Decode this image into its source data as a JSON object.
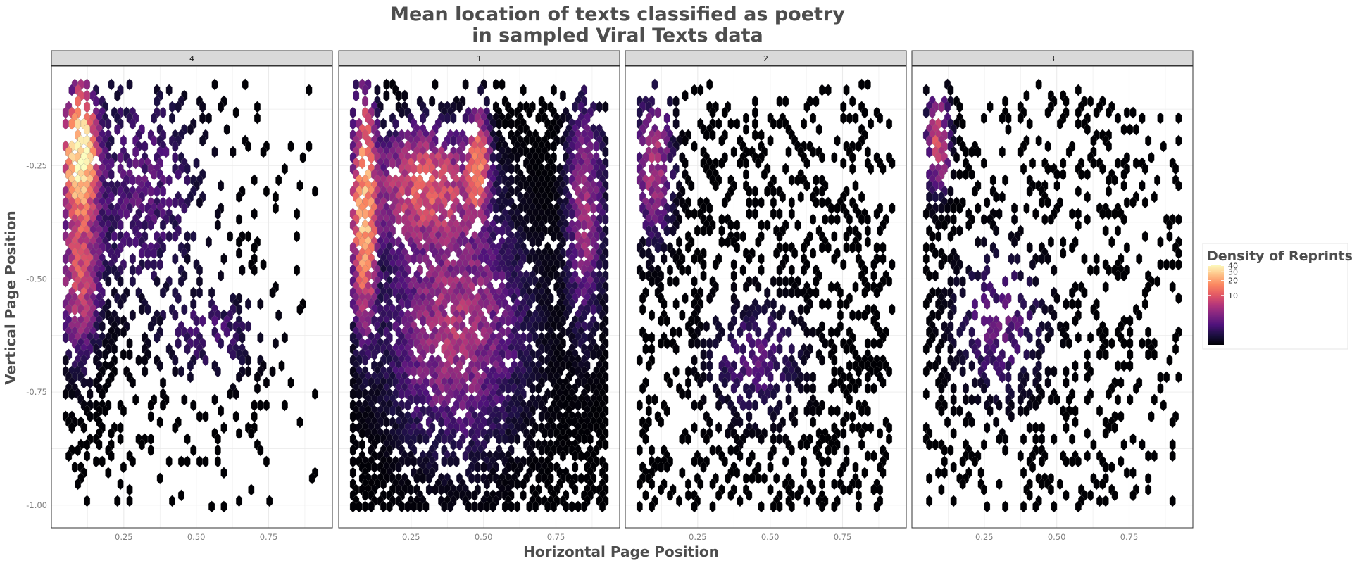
{
  "chart_data": {
    "type": "heatmap",
    "subtype": "hexbin",
    "title_lines": [
      "Mean location of texts classified as poetry",
      "in sampled Viral Texts data"
    ],
    "xlabel": "Horizontal Page Position",
    "ylabel": "Vertical Page Position",
    "xlim": [
      0.0,
      0.97
    ],
    "ylim": [
      -1.05,
      -0.03
    ],
    "x_ticks": [
      0.25,
      0.5,
      0.75
    ],
    "x_tick_labels": [
      "0.25",
      "0.50",
      "0.75"
    ],
    "y_ticks": [
      -0.25,
      -0.5,
      -0.75,
      -1.0
    ],
    "y_tick_labels": [
      "-0.25",
      "-0.50",
      "-0.75",
      "-1.00"
    ],
    "grid": true,
    "facets": [
      {
        "label": "4"
      },
      {
        "label": "1"
      },
      {
        "label": "2"
      },
      {
        "label": "3"
      }
    ],
    "color_scale": {
      "palette": "magma",
      "legend_title": "Density of Reprints",
      "ticks": [
        10,
        20,
        30,
        40
      ],
      "tick_labels": [
        "10",
        "20",
        "30",
        "40"
      ],
      "min": 1,
      "max": 42,
      "legend_placement": "right"
    },
    "colors": {
      "strip_fill": "#d9d9d9",
      "panel_border": "#333333",
      "grid": "#ebebeb",
      "hex_border": "#808080"
    }
  }
}
